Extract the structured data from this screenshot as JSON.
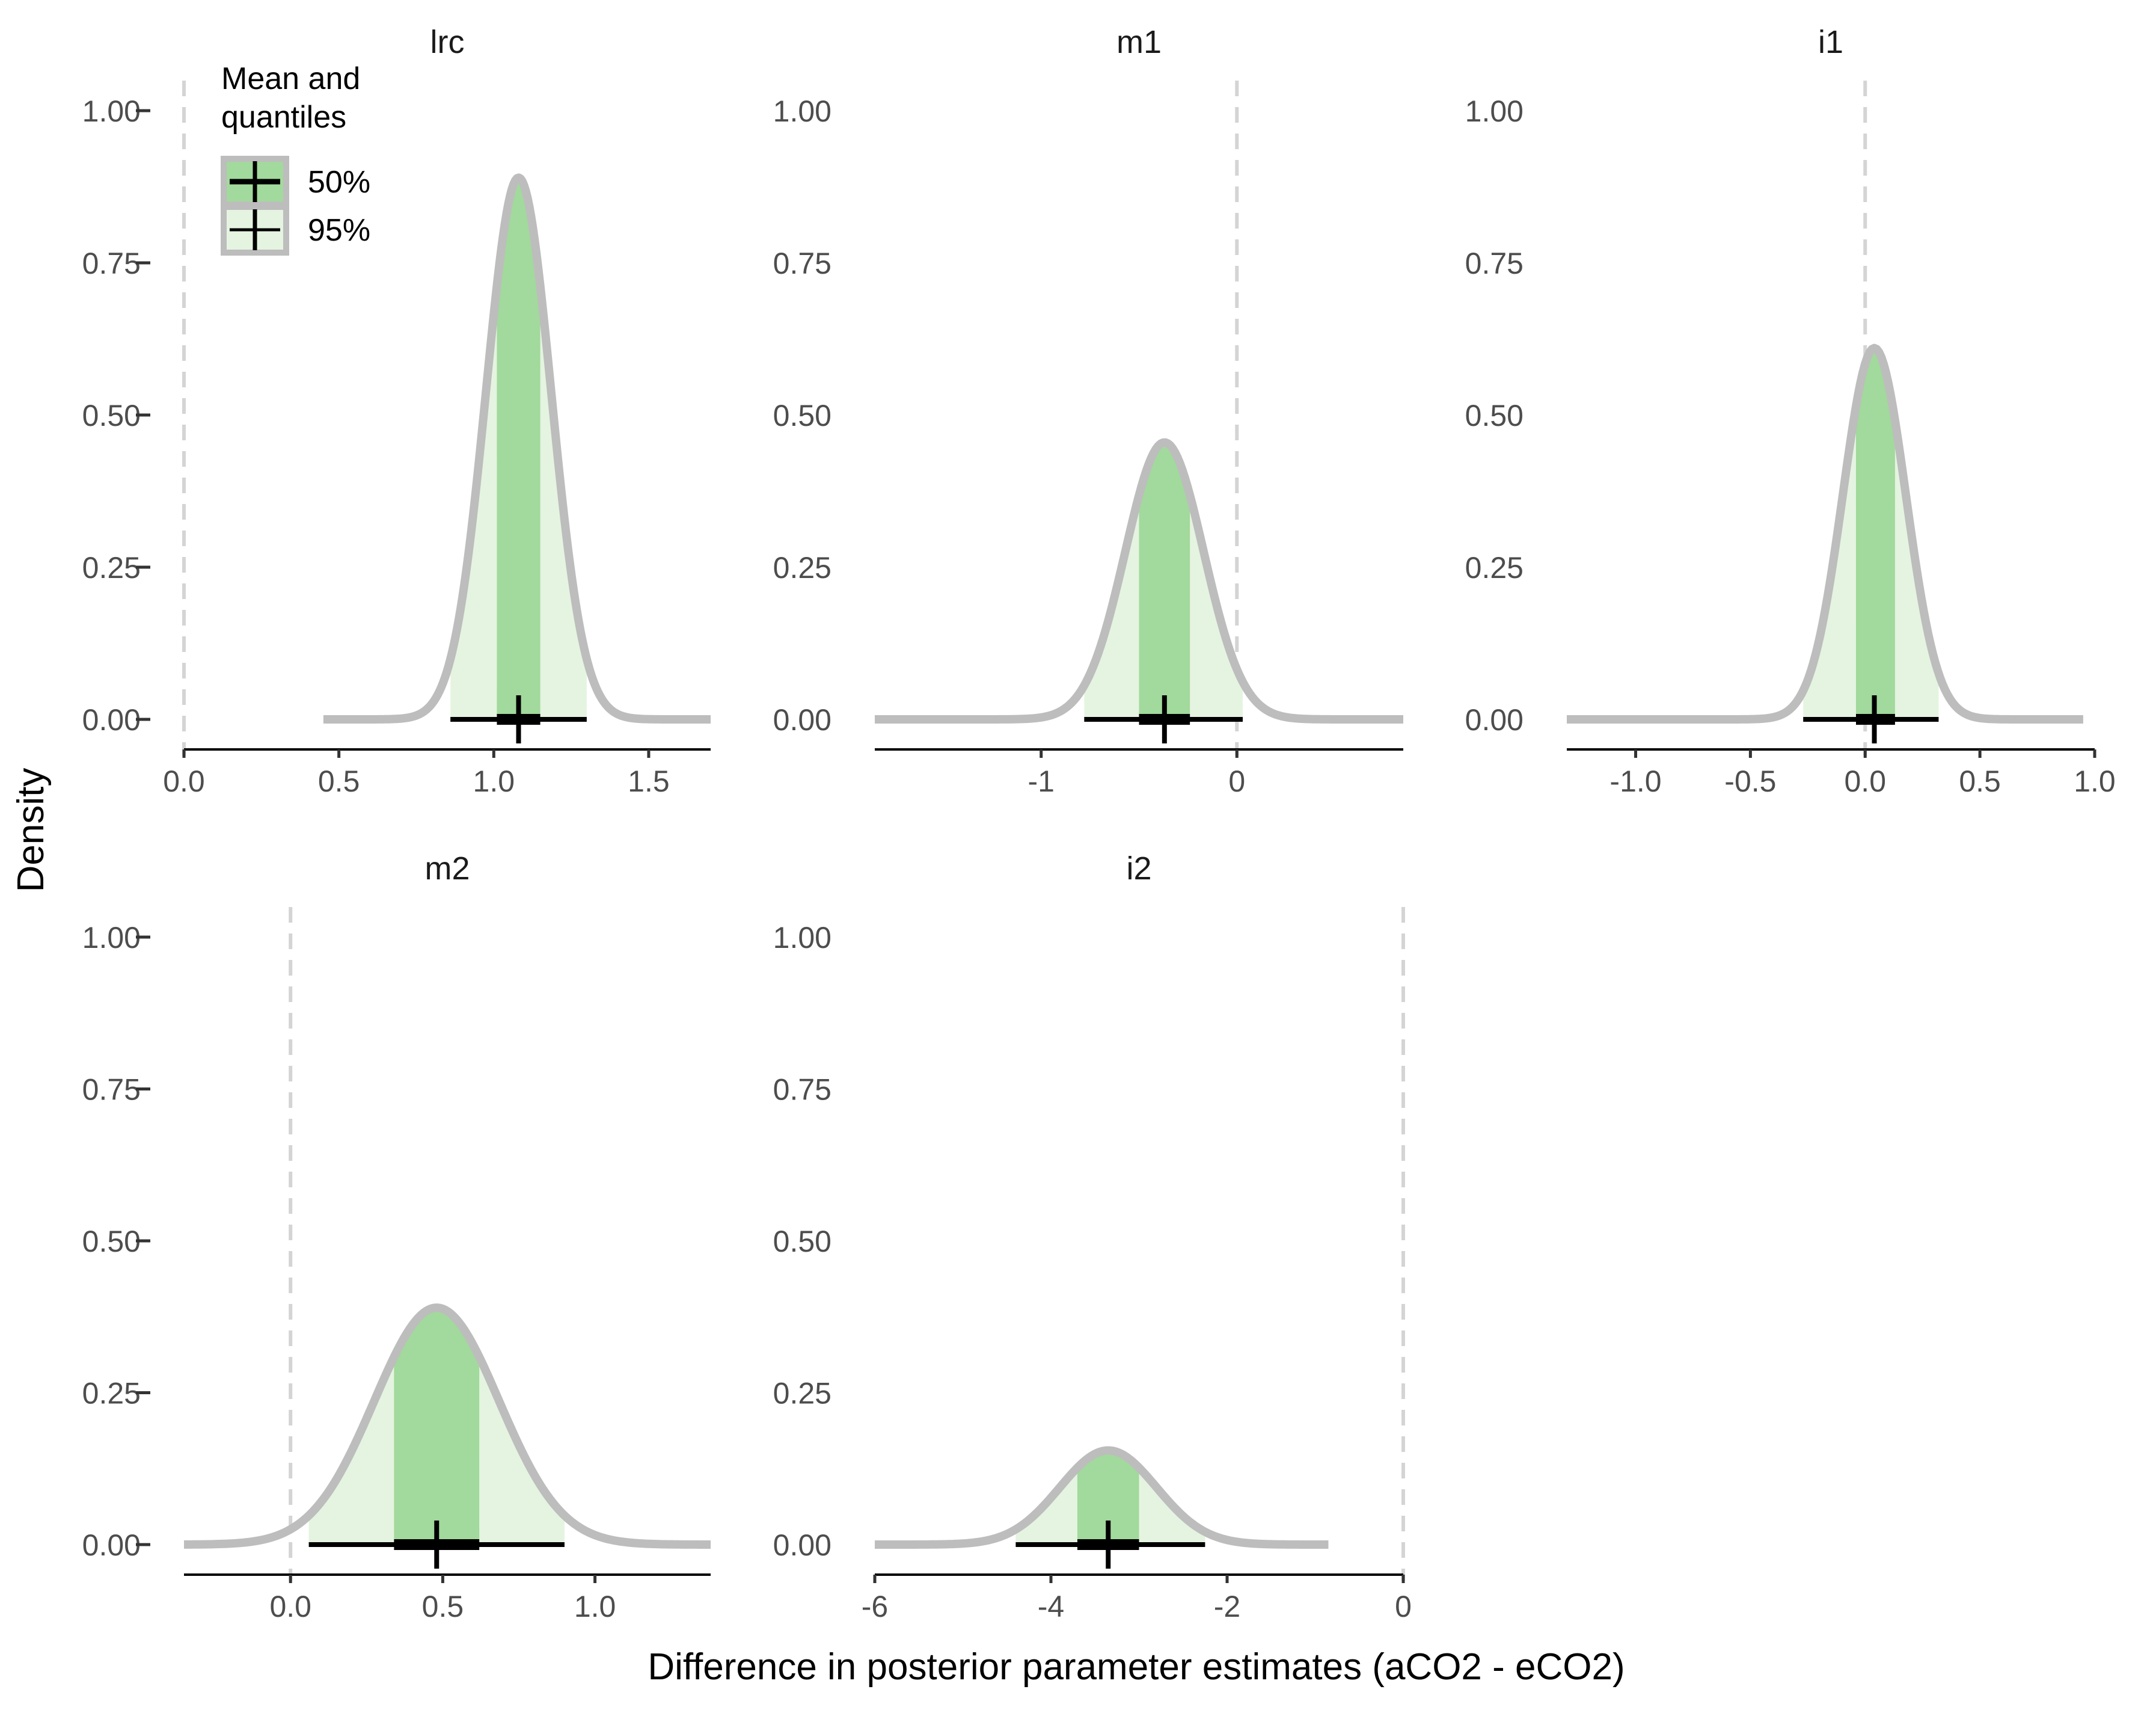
{
  "chart_data": {
    "type": "area",
    "xlabel": "Difference in posterior parameter estimates (aCO2 - eCO2)",
    "ylabel": "Density",
    "y_ticks": [
      0,
      0.25,
      0.5,
      0.75,
      1
    ],
    "y_tick_labels": [
      "0.00",
      "0.25",
      "0.50",
      "0.75",
      "1.00"
    ],
    "ylim": [
      0,
      1
    ],
    "legend": {
      "title_lines": [
        "Mean and",
        "quantiles"
      ],
      "entries": [
        "50%",
        "95%"
      ],
      "position": "top-left"
    },
    "colors": {
      "inner_fill": "#a2d99c",
      "outer_fill": "#e4f4e0",
      "curve": "#bdbdbd",
      "zero_line": "#d4d4d4",
      "interval": "#000000"
    },
    "panels": [
      {
        "label": "lrc",
        "xlim": [
          0,
          1.7
        ],
        "curve_range": [
          0.45,
          1.7
        ],
        "x_ticks": [
          0,
          0.5,
          1,
          1.5
        ],
        "x_tick_labels": [
          "0.0",
          "0.5",
          "1.0",
          "1.5"
        ],
        "mean": 1.08,
        "sd": 0.105,
        "peak": 0.89,
        "q50": [
          1.01,
          1.15
        ],
        "q95": [
          0.86,
          1.3
        ],
        "point": 1.08
      },
      {
        "label": "m1",
        "xlim": [
          -1.85,
          0.85
        ],
        "curve_range": [
          -1.85,
          0.85
        ],
        "x_ticks": [
          -1,
          0
        ],
        "x_tick_labels": [
          "-1",
          "0"
        ],
        "mean": -0.37,
        "sd": 0.2,
        "peak": 0.455,
        "q50": [
          -0.5,
          -0.24
        ],
        "q95": [
          -0.78,
          0.03
        ],
        "point": -0.37
      },
      {
        "label": "i1",
        "xlim": [
          -1.3,
          1.0
        ],
        "curve_range": [
          -1.3,
          0.95
        ],
        "x_ticks": [
          -1,
          -0.5,
          0,
          0.5,
          1
        ],
        "x_tick_labels": [
          "-1.0",
          "-0.5",
          "0.0",
          "0.5",
          "1.0"
        ],
        "mean": 0.04,
        "sd": 0.137,
        "peak": 0.61,
        "q50": [
          -0.04,
          0.13
        ],
        "q95": [
          -0.27,
          0.32
        ],
        "point": 0.04
      },
      {
        "label": "m2",
        "xlim": [
          -0.35,
          1.38
        ],
        "curve_range": [
          -0.35,
          1.38
        ],
        "x_ticks": [
          0,
          0.5,
          1
        ],
        "x_tick_labels": [
          "0.0",
          "0.5",
          "1.0"
        ],
        "mean": 0.48,
        "sd": 0.205,
        "peak": 0.39,
        "q50": [
          0.34,
          0.62
        ],
        "q95": [
          0.06,
          0.9
        ],
        "point": 0.48
      },
      {
        "label": "i2",
        "xlim": [
          -6,
          0
        ],
        "curve_range": [
          -6,
          -0.85
        ],
        "x_ticks": [
          -6,
          -4,
          -2,
          0
        ],
        "x_tick_labels": [
          "-6",
          "-4",
          "-2",
          "0"
        ],
        "mean": -3.35,
        "sd": 0.55,
        "peak": 0.155,
        "q50": [
          -3.7,
          -3.0
        ],
        "q95": [
          -4.4,
          -2.25
        ],
        "point": -3.35
      }
    ]
  }
}
